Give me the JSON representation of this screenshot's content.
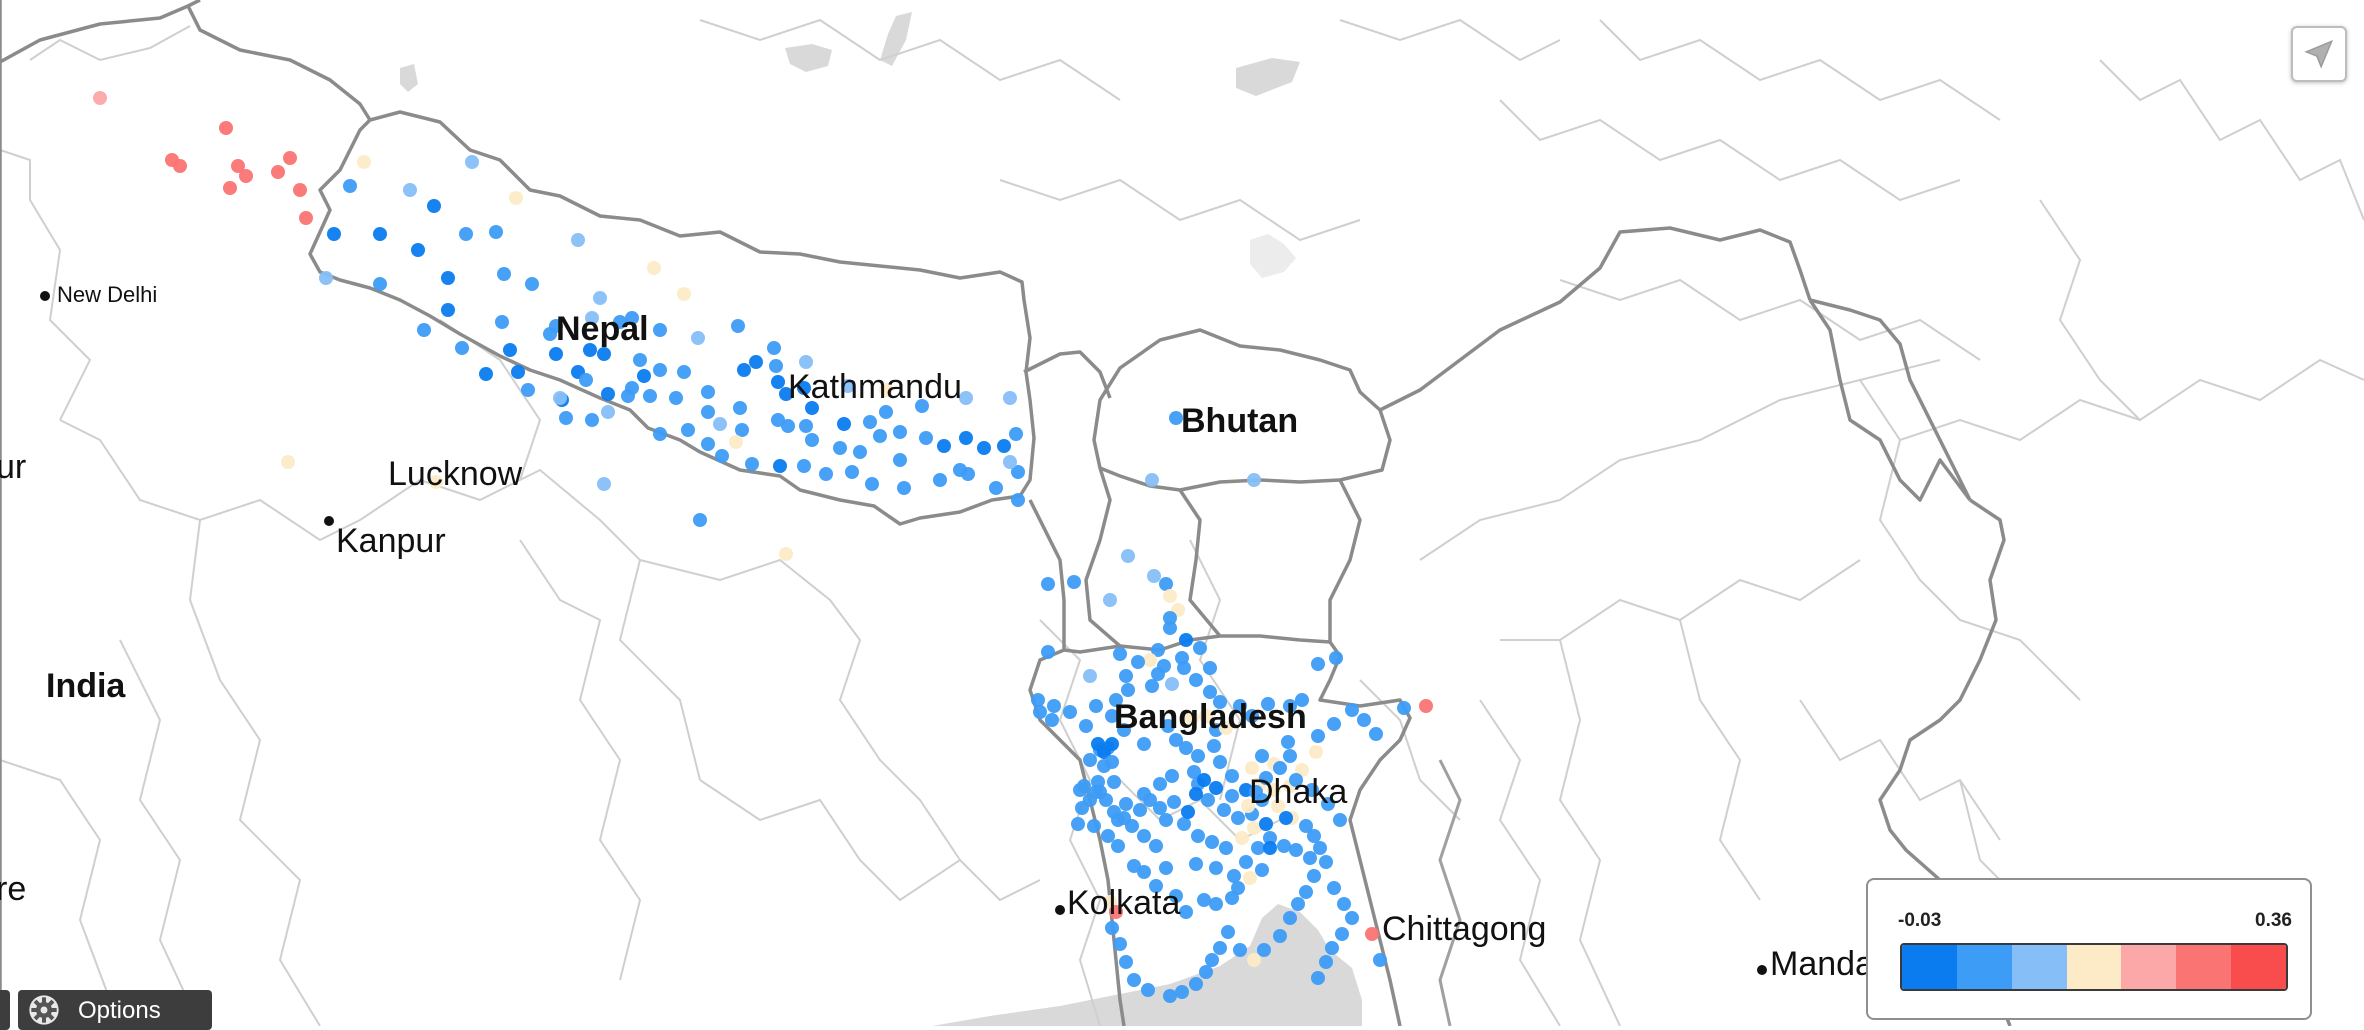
{
  "map": {
    "countries": [
      {
        "name": "Nepal",
        "id": "nepal"
      },
      {
        "name": "Bhutan",
        "id": "bhutan"
      },
      {
        "name": "Bangladesh",
        "id": "bangladesh"
      },
      {
        "name": "India",
        "id": "india"
      }
    ],
    "cities": [
      {
        "name": "New Delhi",
        "id": "new-delhi"
      },
      {
        "name": "Lucknow",
        "id": "lucknow"
      },
      {
        "name": "Kanpur",
        "id": "kanpur"
      },
      {
        "name": "Kathmandu",
        "id": "kathmandu"
      },
      {
        "name": "Dhaka",
        "id": "dhaka"
      },
      {
        "name": "Kolkata",
        "id": "kolkata"
      },
      {
        "name": "Chittagong",
        "id": "chittagong"
      },
      {
        "name": "Mandalay",
        "id": "mandalay",
        "visible_text": "Manda"
      }
    ],
    "partial_labels": [
      "ur",
      "re"
    ],
    "color_scale": {
      "colors": [
        "#0a7cf0",
        "#3d9cf5",
        "#86bff8",
        "#fdebc7",
        "#fca8a8",
        "#fb7474",
        "#f94c4c"
      ]
    }
  },
  "legend": {
    "min_label": "-0.03",
    "max_label": "0.36"
  },
  "controls": {
    "options_label": "Options",
    "locate_icon": "navigation-arrow-icon",
    "options_icon": "gear-icon"
  }
}
